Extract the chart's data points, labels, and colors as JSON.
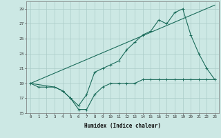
{
  "xlabel": "Humidex (Indice chaleur)",
  "bg_color": "#cce8e4",
  "grid_color": "#aaccc8",
  "line_color": "#1a6b5a",
  "xlim": [
    -0.5,
    23.5
  ],
  "ylim": [
    15,
    30
  ],
  "yticks": [
    15,
    17,
    19,
    21,
    23,
    25,
    27,
    29
  ],
  "xticks": [
    0,
    1,
    2,
    3,
    4,
    5,
    6,
    7,
    8,
    9,
    10,
    11,
    12,
    13,
    14,
    15,
    16,
    17,
    18,
    19,
    20,
    21,
    22,
    23
  ],
  "line1_x": [
    0,
    1,
    2,
    3,
    4,
    5,
    6,
    7,
    8,
    9,
    10,
    11,
    12,
    13,
    14,
    15,
    16,
    17,
    18,
    19,
    20,
    21,
    22,
    23
  ],
  "line1_y": [
    19,
    18.5,
    18.5,
    18.5,
    18,
    17,
    15.5,
    15.5,
    17.5,
    18.5,
    19,
    19,
    19,
    19,
    19.5,
    19.5,
    19.5,
    19.5,
    19.5,
    19.5,
    19.5,
    19.5,
    19.5,
    19.5
  ],
  "line2_x": [
    0,
    3,
    4,
    5,
    6,
    7,
    8,
    9,
    10,
    11,
    12,
    13,
    14,
    15,
    16,
    17,
    18,
    19,
    20,
    21,
    22,
    23
  ],
  "line2_y": [
    19,
    18.5,
    18,
    17,
    16,
    17.5,
    20.5,
    21,
    21.5,
    22,
    23.5,
    24.5,
    25.5,
    26,
    27.5,
    27,
    28.5,
    29,
    25.5,
    23,
    21,
    19.5
  ],
  "line3_x": [
    0,
    23
  ],
  "line3_y": [
    19,
    29.5
  ]
}
